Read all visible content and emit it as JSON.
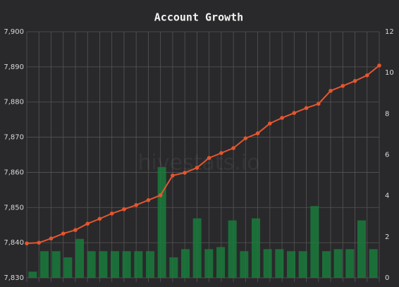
{
  "chart_data": {
    "type": "bar-line",
    "title": "Account Growth",
    "watermark": "hivestats.io",
    "categories": [
      null,
      null,
      null,
      null,
      null,
      null,
      null,
      null,
      null,
      null,
      null,
      null,
      null,
      null,
      null,
      null,
      null,
      null,
      null,
      null,
      null,
      null,
      null,
      null,
      null,
      null,
      null,
      null,
      null,
      null
    ],
    "series": [
      {
        "type": "line",
        "color": "#e4562f",
        "axis": "y",
        "values": [
          7839.8,
          7840.0,
          7841.2,
          7842.6,
          7843.6,
          7845.4,
          7846.8,
          7848.3,
          7849.5,
          7850.7,
          7852.1,
          7853.5,
          7859.1,
          7859.9,
          7861.3,
          7864.1,
          7865.5,
          7866.9,
          7869.7,
          7871.1,
          7873.9,
          7875.5,
          7876.9,
          7878.3,
          7879.5,
          7883.2,
          7884.6,
          7886.0,
          7887.6,
          7890.4
        ]
      },
      {
        "type": "bar",
        "color": "#1a7a3c",
        "axis": "y2",
        "values": [
          0.3,
          1.3,
          1.3,
          1.0,
          1.9,
          1.3,
          1.3,
          1.3,
          1.3,
          1.3,
          1.3,
          5.4,
          1.0,
          1.4,
          2.9,
          1.4,
          1.5,
          2.8,
          1.3,
          2.9,
          1.4,
          1.4,
          1.3,
          1.3,
          3.5,
          1.3,
          1.4,
          1.4,
          2.8,
          1.4
        ]
      }
    ],
    "ylim": [
      7830,
      7900
    ],
    "yticks": [
      {
        "value": 7830,
        "label": "7,830"
      },
      {
        "value": 7840,
        "label": "7,840"
      },
      {
        "value": 7850,
        "label": "7,850"
      },
      {
        "value": 7860,
        "label": "7,860"
      },
      {
        "value": 7870,
        "label": "7,870"
      },
      {
        "value": 7880,
        "label": "7,880"
      },
      {
        "value": 7890,
        "label": "7,890"
      },
      {
        "value": 7900,
        "label": "7,900"
      }
    ],
    "y2lim": [
      0,
      12
    ],
    "y2ticks": [
      0,
      2,
      4,
      6,
      8,
      10,
      12
    ],
    "grid": true
  }
}
